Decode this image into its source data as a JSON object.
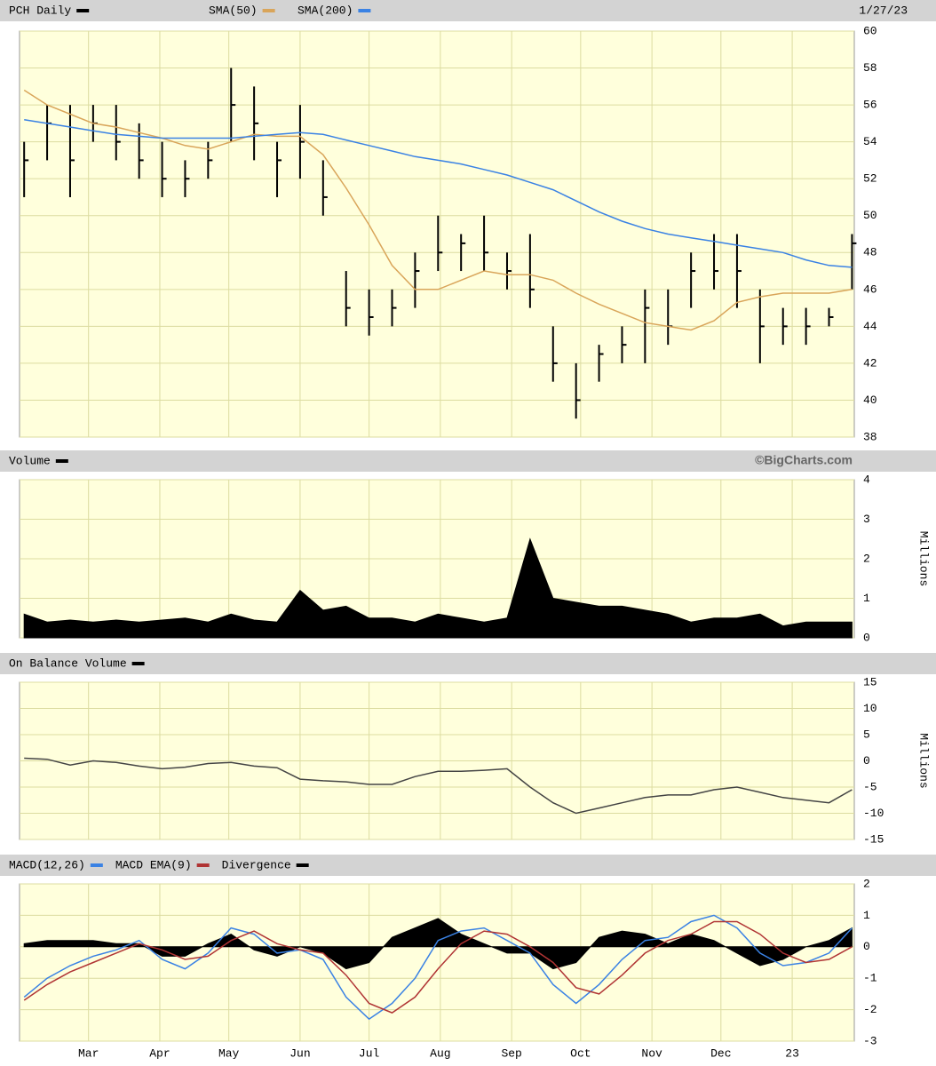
{
  "chart_data": [
    {
      "type": "ohlc",
      "date_label": "1/27/23",
      "x": [
        0,
        10,
        20,
        30,
        40,
        50,
        60,
        70,
        80,
        90,
        100,
        110,
        120,
        130,
        140,
        150,
        160,
        170,
        180,
        190,
        200,
        210,
        220,
        230,
        240,
        250,
        260,
        270,
        280,
        290,
        300,
        310,
        320,
        330,
        340,
        350,
        360
      ],
      "xlim": [
        -2,
        361
      ],
      "ylim": [
        38,
        60
      ],
      "yticks": [
        38,
        40,
        42,
        44,
        46,
        48,
        50,
        52,
        54,
        56,
        58,
        60
      ],
      "grid": true,
      "series": [
        {
          "name": "PCH Daily",
          "color": "#000000",
          "high": [
            54,
            56,
            56,
            56,
            56,
            55,
            54,
            53,
            54,
            58,
            57,
            54,
            56,
            53,
            47,
            46,
            46,
            48,
            50,
            49,
            50,
            48,
            49,
            44,
            42,
            43,
            44,
            46,
            46,
            48,
            49,
            49,
            46,
            45,
            45,
            45,
            49
          ],
          "low": [
            51,
            53,
            51,
            54,
            53,
            52,
            51,
            51,
            52,
            54,
            53,
            51,
            52,
            50,
            44,
            43.5,
            44,
            45,
            47,
            47,
            47,
            46,
            45,
            41,
            39,
            41,
            42,
            42,
            43,
            45,
            46,
            45,
            42,
            43,
            43,
            44,
            46
          ],
          "close": [
            53,
            55,
            53,
            55,
            54,
            53,
            52,
            52,
            53,
            56,
            55,
            53,
            54,
            51,
            45,
            44.5,
            45,
            47,
            48,
            48.5,
            48,
            47,
            46,
            42,
            40,
            42.5,
            43,
            45,
            44,
            47,
            47,
            47,
            44,
            44,
            44,
            44.5,
            48.5
          ]
        },
        {
          "name": "SMA(50)",
          "color": "#d9a55a",
          "values": [
            56.8,
            56,
            55.5,
            55,
            54.8,
            54.5,
            54.2,
            53.8,
            53.6,
            54,
            54.4,
            54.3,
            54.3,
            53.3,
            51.5,
            49.5,
            47.3,
            46,
            46,
            46.5,
            47,
            46.8,
            46.8,
            46.5,
            45.8,
            45.2,
            44.7,
            44.2,
            44,
            43.8,
            44.3,
            45.3,
            45.6,
            45.8,
            45.8,
            45.8,
            46
          ]
        },
        {
          "name": "SMA(200)",
          "color": "#3a82e4",
          "values": [
            55.2,
            55,
            54.8,
            54.6,
            54.4,
            54.3,
            54.2,
            54.2,
            54.2,
            54.2,
            54.3,
            54.4,
            54.5,
            54.4,
            54.1,
            53.8,
            53.5,
            53.2,
            53,
            52.8,
            52.5,
            52.2,
            51.8,
            51.4,
            50.8,
            50.2,
            49.7,
            49.3,
            49,
            48.8,
            48.6,
            48.4,
            48.2,
            48,
            47.6,
            47.3,
            47.2
          ]
        }
      ]
    },
    {
      "type": "area",
      "title": "Volume",
      "credit": "©BigCharts.com",
      "y_label": "Millions",
      "ylim": [
        0,
        4
      ],
      "yticks": [
        0,
        1,
        2,
        3,
        4
      ],
      "grid": true,
      "series": [
        {
          "name": "Volume",
          "color": "#000000",
          "values": [
            0.6,
            0.4,
            0.45,
            0.4,
            0.45,
            0.4,
            0.45,
            0.5,
            0.4,
            0.6,
            0.45,
            0.4,
            1.2,
            0.7,
            0.8,
            0.5,
            0.5,
            0.4,
            0.6,
            0.5,
            0.4,
            0.5,
            2.5,
            1.0,
            0.9,
            0.8,
            0.8,
            0.7,
            0.6,
            0.4,
            0.5,
            0.5,
            0.6,
            0.3,
            0.4,
            0.4,
            0.4
          ]
        }
      ]
    },
    {
      "type": "line",
      "title": "On Balance Volume",
      "y_label": "Millions",
      "ylim": [
        -15,
        15
      ],
      "yticks": [
        -15,
        -10,
        -5,
        0,
        5,
        10,
        15
      ],
      "grid": true,
      "series": [
        {
          "name": "On Balance Volume",
          "color": "#444444",
          "values": [
            0.5,
            0.3,
            -0.8,
            0,
            -0.3,
            -1,
            -1.5,
            -1.2,
            -0.5,
            -0.3,
            -1,
            -1.3,
            -3.5,
            -3.8,
            -4,
            -4.5,
            -4.5,
            -3,
            -2,
            -2,
            -1.8,
            -1.5,
            -5,
            -8,
            -10,
            -9,
            -8,
            -7,
            -6.5,
            -6.5,
            -5.5,
            -5,
            -6,
            -7,
            -7.5,
            -8,
            -5.5
          ]
        }
      ]
    },
    {
      "type": "macd",
      "ylim": [
        -3,
        2
      ],
      "yticks": [
        -3,
        -2,
        -1,
        0,
        1,
        2
      ],
      "grid": true,
      "xticks": [
        {
          "value": 28,
          "label": "Mar"
        },
        {
          "value": 59,
          "label": "Apr"
        },
        {
          "value": 89,
          "label": "May"
        },
        {
          "value": 120,
          "label": "Jun"
        },
        {
          "value": 150,
          "label": "Jul"
        },
        {
          "value": 181,
          "label": "Aug"
        },
        {
          "value": 212,
          "label": "Sep"
        },
        {
          "value": 242,
          "label": "Oct"
        },
        {
          "value": 273,
          "label": "Nov"
        },
        {
          "value": 303,
          "label": "Dec"
        },
        {
          "value": 334,
          "label": "23"
        }
      ],
      "series": [
        {
          "name": "MACD(12,26)",
          "color": "#3a82e4",
          "values": [
            -1.6,
            -1.0,
            -0.6,
            -0.3,
            -0.1,
            0.2,
            -0.4,
            -0.7,
            -0.2,
            0.6,
            0.4,
            -0.2,
            -0.1,
            -0.4,
            -1.6,
            -2.3,
            -1.8,
            -1.0,
            0.2,
            0.5,
            0.6,
            0.2,
            -0.2,
            -1.2,
            -1.8,
            -1.2,
            -0.4,
            0.2,
            0.3,
            0.8,
            1.0,
            0.6,
            -0.2,
            -0.6,
            -0.5,
            -0.2,
            0.6
          ]
        },
        {
          "name": "MACD EMA(9)",
          "color": "#b03434",
          "values": [
            -1.7,
            -1.2,
            -0.8,
            -0.5,
            -0.2,
            0.1,
            -0.1,
            -0.4,
            -0.3,
            0.2,
            0.5,
            0.1,
            -0.1,
            -0.2,
            -0.9,
            -1.8,
            -2.1,
            -1.6,
            -0.7,
            0.1,
            0.5,
            0.4,
            0,
            -0.5,
            -1.3,
            -1.5,
            -0.9,
            -0.2,
            0.2,
            0.4,
            0.8,
            0.8,
            0.4,
            -0.2,
            -0.5,
            -0.4,
            0
          ]
        },
        {
          "name": "Divergence",
          "color": "#000000",
          "area": true,
          "values": [
            0.1,
            0.2,
            0.2,
            0.2,
            0.1,
            0.1,
            -0.3,
            -0.3,
            0.1,
            0.4,
            -0.1,
            -0.3,
            0,
            -0.2,
            -0.7,
            -0.5,
            0.3,
            0.6,
            0.9,
            0.4,
            0.1,
            -0.2,
            -0.2,
            -0.7,
            -0.5,
            0.3,
            0.5,
            0.4,
            0.1,
            0.4,
            0.2,
            -0.2,
            -0.6,
            -0.4,
            0,
            0.2,
            0.6
          ]
        }
      ]
    }
  ]
}
